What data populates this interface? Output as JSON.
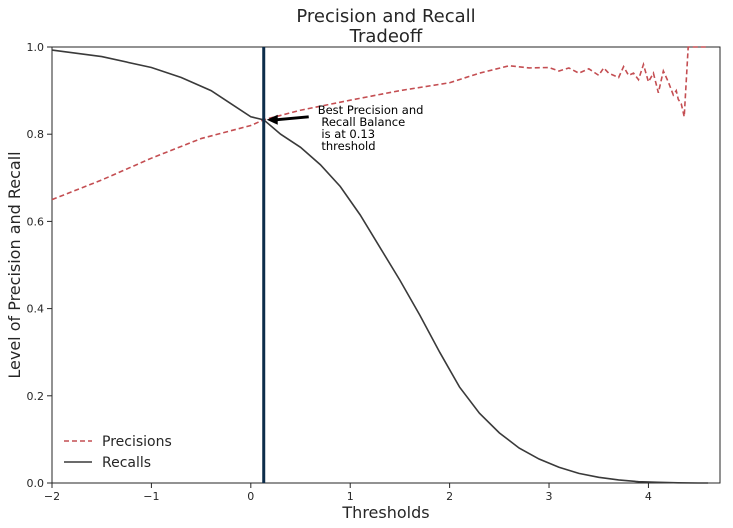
{
  "chart_data": {
    "type": "line",
    "title": [
      "Precision and Recall",
      "Tradeoff"
    ],
    "xlabel": "Thresholds",
    "ylabel": "Level of Precision and Recall",
    "xlim": [
      -2,
      4.72
    ],
    "ylim": [
      0,
      1.0
    ],
    "xticks": [
      -2,
      -1,
      0,
      1,
      2,
      3,
      4
    ],
    "xtick_labels": [
      "−2",
      "−1",
      "0",
      "1",
      "2",
      "3",
      "4"
    ],
    "yticks": [
      0.0,
      0.2,
      0.4,
      0.6,
      0.8,
      1.0
    ],
    "ytick_labels": [
      "0.0",
      "0.2",
      "0.4",
      "0.6",
      "0.8",
      "1.0"
    ],
    "grid": false,
    "legend_position": "lower-left",
    "series": [
      {
        "name": "Precisions",
        "color": "#c44e52",
        "style": "dashed",
        "x": [
          -2.0,
          -1.5,
          -1.0,
          -0.5,
          0.0,
          0.13,
          0.5,
          1.0,
          1.5,
          2.0,
          2.3,
          2.6,
          2.8,
          3.0,
          3.1,
          3.2,
          3.3,
          3.4,
          3.5,
          3.55,
          3.6,
          3.7,
          3.75,
          3.8,
          3.85,
          3.9,
          3.95,
          4.0,
          4.05,
          4.1,
          4.15,
          4.2,
          4.25,
          4.28,
          4.3,
          4.33,
          4.36,
          4.4,
          4.5,
          4.6
        ],
        "y": [
          0.65,
          0.695,
          0.745,
          0.79,
          0.82,
          0.833,
          0.855,
          0.878,
          0.9,
          0.918,
          0.94,
          0.957,
          0.952,
          0.953,
          0.945,
          0.952,
          0.94,
          0.95,
          0.935,
          0.952,
          0.94,
          0.93,
          0.955,
          0.935,
          0.94,
          0.925,
          0.96,
          0.92,
          0.94,
          0.895,
          0.945,
          0.92,
          0.89,
          0.9,
          0.88,
          0.87,
          0.84,
          1.0,
          1.0,
          1.0
        ]
      },
      {
        "name": "Recalls",
        "color": "#3a3a3a",
        "style": "solid",
        "x": [
          -2.0,
          -1.5,
          -1.0,
          -0.7,
          -0.4,
          -0.2,
          0.0,
          0.13,
          0.3,
          0.5,
          0.7,
          0.9,
          1.1,
          1.3,
          1.5,
          1.7,
          1.9,
          2.1,
          2.3,
          2.5,
          2.7,
          2.9,
          3.1,
          3.3,
          3.5,
          3.7,
          3.9,
          4.1,
          4.3,
          4.5,
          4.6
        ],
        "y": [
          0.993,
          0.978,
          0.953,
          0.93,
          0.9,
          0.87,
          0.84,
          0.833,
          0.8,
          0.77,
          0.73,
          0.68,
          0.615,
          0.54,
          0.465,
          0.385,
          0.3,
          0.22,
          0.16,
          0.115,
          0.08,
          0.055,
          0.036,
          0.022,
          0.013,
          0.007,
          0.003,
          0.0015,
          0.0005,
          0.0,
          0.0
        ]
      }
    ],
    "vline": {
      "x": 0.13,
      "color": "#0d2d4a"
    },
    "annotation": {
      "text_lines": [
        "Best Precision and",
        " Recall Balance",
        " is at 0.13",
        " threshold"
      ],
      "point_x": 0.13,
      "point_y": 0.833,
      "arrow_color": "#000000"
    }
  }
}
